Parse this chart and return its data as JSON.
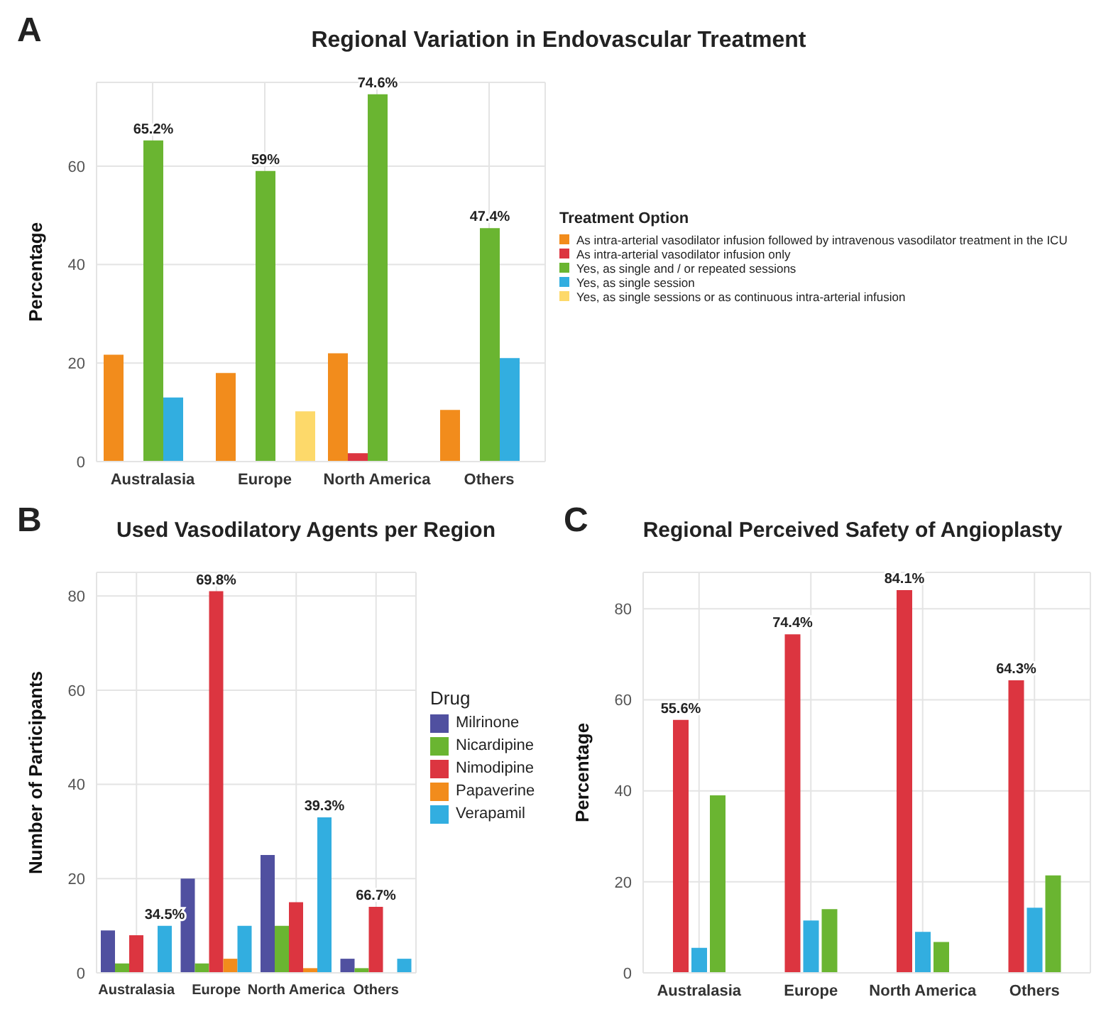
{
  "chart_data": [
    {
      "type": "bar",
      "title": "Regional Variation in Endovascular Treatment",
      "annotations": [
        "A"
      ],
      "ylabel": "Percentage",
      "legend_title": "Treatment Option",
      "legend": "right",
      "grid": true,
      "ylim": [
        0,
        77
      ],
      "yticks": [
        0,
        20,
        40,
        60
      ],
      "categories": [
        "Australasia",
        "Europe",
        "North America",
        "Others"
      ],
      "series": [
        {
          "name": "As intra-arterial vasodilator infusion followed by intravenous vasodilator treatment in the ICU",
          "color": "#f28c1c",
          "values": [
            21.7,
            18,
            22,
            10.5
          ]
        },
        {
          "name": "As intra-arterial vasodilator infusion only",
          "color": "#dc3540",
          "values": [
            null,
            null,
            1.7,
            null
          ]
        },
        {
          "name": "Yes, as single and / or repeated sessions",
          "color": "#6ab531",
          "values": [
            65.2,
            59,
            74.6,
            47.4
          ],
          "value_labels": [
            "65.2%",
            "59%",
            "74.6%",
            "47.4%"
          ]
        },
        {
          "name": "Yes, as single session",
          "color": "#32aee0",
          "values": [
            13,
            null,
            null,
            21
          ]
        },
        {
          "name": "Yes, as single sessions or as continuous intra-arterial infusion",
          "color": "#fdd96a",
          "values": [
            null,
            10.2,
            null,
            null
          ]
        }
      ]
    },
    {
      "type": "bar",
      "title": "Used Vasodilatory Agents per Region",
      "annotations": [
        "B",
        "34.5%",
        "69.8%",
        "39.3%",
        "66.7%"
      ],
      "ylabel": "Number of Participants",
      "legend_title": "Drug",
      "legend": "right",
      "grid": true,
      "ylim": [
        0,
        85
      ],
      "yticks": [
        0,
        20,
        40,
        60,
        80
      ],
      "categories": [
        "Australasia",
        "Europe",
        "North America",
        "Others"
      ],
      "series": [
        {
          "name": "Milrinone",
          "color": "#5050a0",
          "values": [
            9,
            20,
            25,
            3
          ]
        },
        {
          "name": "Nicardipine",
          "color": "#6ab531",
          "values": [
            2,
            2,
            10,
            1
          ]
        },
        {
          "name": "Nimodipine",
          "color": "#dc3540",
          "values": [
            8,
            81,
            15,
            14
          ]
        },
        {
          "name": "Papaverine",
          "color": "#f28c1c",
          "values": [
            null,
            3,
            1,
            null
          ]
        },
        {
          "name": "Verapamil",
          "color": "#32aee0",
          "values": [
            10,
            10,
            33,
            3
          ]
        }
      ]
    },
    {
      "type": "bar",
      "title": "Regional Perceived Safety of Angioplasty",
      "annotations": [
        "C"
      ],
      "ylabel": "Percentage",
      "legend": false,
      "grid": true,
      "ylim": [
        0,
        88
      ],
      "yticks": [
        0,
        20,
        40,
        60,
        80
      ],
      "categories": [
        "Australasia",
        "Europe",
        "North America",
        "Others"
      ],
      "series": [
        {
          "color": "#dc3540",
          "values": [
            55.6,
            74.4,
            84.1,
            64.3
          ],
          "value_labels": [
            "55.6%",
            "74.4%",
            "84.1%",
            "64.3%"
          ]
        },
        {
          "color": "#32aee0",
          "values": [
            5.5,
            11.5,
            9,
            14.3
          ]
        },
        {
          "color": "#6ab531",
          "values": [
            39,
            14,
            6.8,
            21.4
          ]
        }
      ]
    }
  ]
}
